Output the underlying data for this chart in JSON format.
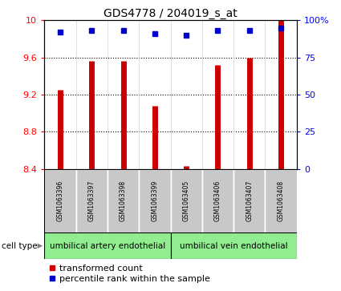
{
  "title": "GDS4778 / 204019_s_at",
  "samples": [
    "GSM1063396",
    "GSM1063397",
    "GSM1063398",
    "GSM1063399",
    "GSM1063405",
    "GSM1063406",
    "GSM1063407",
    "GSM1063408"
  ],
  "red_values": [
    9.25,
    9.56,
    9.56,
    9.08,
    8.43,
    9.52,
    9.6,
    10.0
  ],
  "blue_values": [
    92,
    93,
    93,
    91,
    90,
    93,
    93,
    95
  ],
  "ylim_left": [
    8.4,
    10.0
  ],
  "ylim_right": [
    0,
    100
  ],
  "yticks_left": [
    8.4,
    8.8,
    9.2,
    9.6,
    10.0
  ],
  "yticks_right": [
    0,
    25,
    50,
    75,
    100
  ],
  "ytick_labels_left": [
    "8.4",
    "8.8",
    "9.2",
    "9.6",
    "10"
  ],
  "ytick_labels_right": [
    "0",
    "25",
    "50",
    "75",
    "100%"
  ],
  "group1_label": "umbilical artery endothelial",
  "group2_label": "umbilical vein endothelial",
  "group_bg_color": "#C8C8C8",
  "cell_type_row_color": "#90EE90",
  "bar_color": "#CC0000",
  "dot_color": "#0000CC",
  "title_fontsize": 10,
  "tick_fontsize": 8,
  "legend_fontsize": 8,
  "sample_fontsize": 5.5,
  "celltype_fontsize": 7.5
}
